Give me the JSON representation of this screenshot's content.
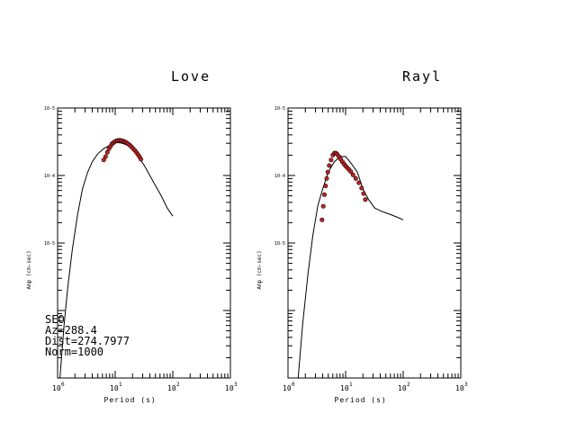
{
  "chart_data": [
    {
      "type": "scatter",
      "title": "Love",
      "xlabel": "Period (s)",
      "ylabel": "Amp (cm-sec)",
      "xscale": "log",
      "yscale": "log",
      "xlim": [
        1,
        1000
      ],
      "ylim": [
        1e-07,
        0.001
      ],
      "x_ticks": [
        {
          "base": "10",
          "exp": "0"
        },
        {
          "base": "10",
          "exp": "1"
        },
        {
          "base": "10",
          "exp": "2"
        },
        {
          "base": "10",
          "exp": "3"
        }
      ],
      "y_ticks": [
        "10-5",
        "10-4",
        "10-5"
      ],
      "grid": false,
      "annotations": [
        "SEO",
        "Az=288.4",
        "Dist=274.7977",
        "Norm=1000"
      ],
      "series": [
        {
          "style": "line",
          "color": "#000000",
          "x": [
            1.1,
            1.3,
            1.5,
            1.8,
            2.2,
            2.7,
            3.3,
            4.0,
            5.0,
            6.3,
            8.0,
            10,
            13,
            16,
            20,
            25,
            32,
            40,
            50,
            63,
            80,
            100
          ],
          "y": [
            1e-07,
            6.3e-07,
            2.2e-06,
            7.9e-06,
            2.5e-05,
            6.3e-05,
            0.00011,
            0.00016,
            0.00021,
            0.00025,
            0.00028,
            0.00031,
            0.000302,
            0.000282,
            0.000245,
            0.000191,
            0.000141,
            0.0001,
            7.1e-05,
            5e-05,
            3.3e-05,
            2.5e-05
          ]
        },
        {
          "style": "points",
          "color": "#cc2222",
          "x": [
            6.3,
            6.8,
            7.3,
            7.8,
            8.3,
            8.8,
            9.3,
            9.8,
            10.4,
            11,
            11.8,
            12.6,
            13.5,
            14.5,
            15.5,
            16.6,
            17.8,
            19,
            20.3,
            21.8,
            23.3,
            25,
            26.5,
            28
          ],
          "y": [
            0.00017,
            0.00019,
            0.00022,
            0.00025,
            0.00027,
            0.000295,
            0.000305,
            0.000315,
            0.000325,
            0.00033,
            0.000332,
            0.00033,
            0.000325,
            0.000318,
            0.000308,
            0.000296,
            0.000283,
            0.000268,
            0.000252,
            0.000236,
            0.00022,
            0.000203,
            0.000188,
            0.000174
          ]
        }
      ]
    },
    {
      "type": "scatter",
      "title": "Rayl",
      "xlabel": "Period (s)",
      "ylabel": "Amp (cm-sec)",
      "xscale": "log",
      "yscale": "log",
      "xlim": [
        1,
        1000
      ],
      "ylim": [
        1e-07,
        0.001
      ],
      "x_ticks": [
        {
          "base": "10",
          "exp": "0"
        },
        {
          "base": "10",
          "exp": "1"
        },
        {
          "base": "10",
          "exp": "2"
        },
        {
          "base": "10",
          "exp": "3"
        }
      ],
      "y_ticks": [
        "10-5",
        "10-4",
        "10-5"
      ],
      "grid": false,
      "series": [
        {
          "style": "line",
          "color": "#000000",
          "x": [
            1.5,
            1.8,
            2.2,
            2.7,
            3.3,
            4.0,
            5.0,
            6.3,
            8.0,
            10,
            12.5,
            16,
            20,
            25,
            32,
            40,
            50,
            63,
            80,
            100
          ],
          "y": [
            1e-07,
            6.3e-07,
            3.2e-06,
            1.3e-05,
            3.6e-05,
            6.3e-05,
            0.000112,
            0.000158,
            0.000191,
            0.000191,
            0.000151,
            0.000112,
            6.3e-05,
            4.4e-05,
            3.3e-05,
            3e-05,
            2.8e-05,
            2.6e-05,
            2.4e-05,
            2.2e-05
          ]
        },
        {
          "style": "points",
          "color": "#cc2222",
          "x": [
            3.9,
            4.1,
            4.3,
            4.5,
            4.7,
            4.9,
            5.2,
            5.6,
            6.0,
            6.4,
            6.8,
            7.2,
            7.7,
            8.2,
            8.8,
            9.4,
            10,
            10.7,
            11.5,
            12.3,
            13.5,
            15,
            17,
            19,
            20.5,
            22
          ],
          "y": [
            2.2e-05,
            3.5e-05,
            5.2e-05,
            7e-05,
            9e-05,
            0.000112,
            0.00014,
            0.00017,
            0.0002,
            0.000215,
            0.000215,
            0.000205,
            0.00019,
            0.000175,
            0.00016,
            0.000148,
            0.000138,
            0.00013,
            0.000122,
            0.000114,
            0.000102,
            9e-05,
            7.8e-05,
            6.5e-05,
            5.4e-05,
            4.4e-05
          ]
        }
      ]
    }
  ]
}
